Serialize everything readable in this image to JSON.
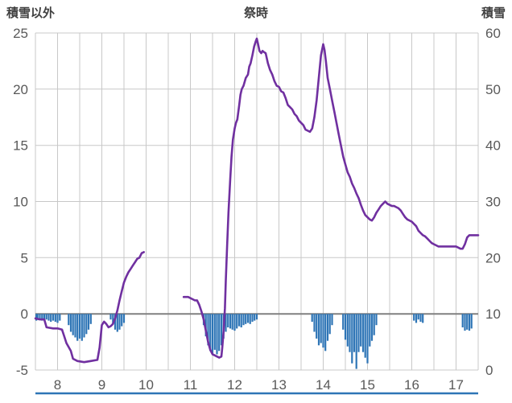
{
  "titles": {
    "left": "積雪以外",
    "center": "祭時",
    "right": "積雪"
  },
  "chart_data": {
    "type": "line+bar",
    "title": "祭時",
    "x_axis": {
      "min": 7.5,
      "max": 17.5,
      "grid_step": 0.5,
      "ticks": [
        8,
        9,
        10,
        11,
        12,
        13,
        14,
        15,
        16,
        17
      ]
    },
    "y_axis_left": {
      "label": "積雪以外",
      "min": -5,
      "max": 25,
      "ticks": [
        -5,
        0,
        5,
        10,
        15,
        20,
        25
      ]
    },
    "y_axis_right": {
      "label": "積雪",
      "min": 0,
      "max": 60,
      "ticks": [
        0,
        10,
        20,
        30,
        40,
        50,
        60
      ]
    },
    "colors": {
      "line": "#7030A0",
      "bar": "#2E75B6",
      "grid": "#C8C8C8",
      "zero_line": "#808080",
      "tick_text": "#595959",
      "title_text": "#404040",
      "bottom_line": "#2E75B6",
      "background": "#FFFFFF"
    },
    "series": [
      {
        "name": "purple-line",
        "type": "line",
        "axis": "left",
        "segments": [
          [
            [
              7.5,
              -0.4
            ],
            [
              7.6,
              -0.5
            ],
            [
              7.7,
              -0.5
            ],
            [
              7.75,
              -1.2
            ],
            [
              7.9,
              -1.3
            ],
            [
              8.0,
              -1.3
            ],
            [
              8.1,
              -1.4
            ],
            [
              8.15,
              -2.0
            ],
            [
              8.2,
              -2.6
            ],
            [
              8.3,
              -3.3
            ],
            [
              8.35,
              -4.0
            ],
            [
              8.45,
              -4.2
            ],
            [
              8.6,
              -4.3
            ],
            [
              8.75,
              -4.2
            ],
            [
              8.9,
              -4.1
            ],
            [
              8.95,
              -3.0
            ],
            [
              9.0,
              -1.0
            ],
            [
              9.05,
              -0.7
            ],
            [
              9.1,
              -0.9
            ],
            [
              9.15,
              -1.2
            ],
            [
              9.2,
              -1.1
            ],
            [
              9.25,
              -0.9
            ],
            [
              9.3,
              -0.4
            ],
            [
              9.35,
              0.3
            ],
            [
              9.4,
              1.2
            ],
            [
              9.45,
              2.0
            ],
            [
              9.5,
              2.8
            ],
            [
              9.55,
              3.3
            ],
            [
              9.6,
              3.7
            ],
            [
              9.65,
              4.0
            ],
            [
              9.7,
              4.3
            ],
            [
              9.75,
              4.6
            ],
            [
              9.8,
              4.9
            ],
            [
              9.85,
              5.0
            ],
            [
              9.9,
              5.4
            ],
            [
              9.95,
              5.5
            ]
          ],
          [
            [
              10.85,
              1.5
            ],
            [
              10.95,
              1.5
            ],
            [
              11.05,
              1.3
            ],
            [
              11.1,
              1.2
            ],
            [
              11.15,
              1.2
            ],
            [
              11.2,
              0.8
            ],
            [
              11.25,
              0.2
            ],
            [
              11.3,
              -0.5
            ],
            [
              11.35,
              -1.5
            ],
            [
              11.4,
              -2.5
            ],
            [
              11.45,
              -3.2
            ],
            [
              11.5,
              -3.6
            ],
            [
              11.55,
              -3.7
            ],
            [
              11.6,
              -3.8
            ],
            [
              11.65,
              -3.9
            ],
            [
              11.7,
              -3.8
            ],
            [
              11.72,
              -3.0
            ],
            [
              11.75,
              -1.5
            ],
            [
              11.78,
              0.5
            ],
            [
              11.8,
              3
            ],
            [
              11.83,
              6
            ],
            [
              11.86,
              9
            ],
            [
              11.9,
              12
            ],
            [
              11.93,
              14
            ],
            [
              11.96,
              15.5
            ],
            [
              12.0,
              16.5
            ],
            [
              12.03,
              17
            ],
            [
              12.06,
              17.3
            ],
            [
              12.1,
              18.5
            ],
            [
              12.13,
              19.5
            ],
            [
              12.16,
              20
            ],
            [
              12.2,
              20.3
            ],
            [
              12.25,
              21
            ],
            [
              12.3,
              21.3
            ],
            [
              12.33,
              22
            ],
            [
              12.36,
              22.3
            ],
            [
              12.4,
              23
            ],
            [
              12.44,
              23.8
            ],
            [
              12.48,
              24.3
            ],
            [
              12.5,
              24.5
            ],
            [
              12.53,
              24
            ],
            [
              12.56,
              23.4
            ],
            [
              12.6,
              23.2
            ],
            [
              12.63,
              23.4
            ],
            [
              12.66,
              23.3
            ],
            [
              12.7,
              23.2
            ],
            [
              12.75,
              22.3
            ],
            [
              12.8,
              21.7
            ],
            [
              12.85,
              21.3
            ],
            [
              12.9,
              20.7
            ],
            [
              12.95,
              20.3
            ],
            [
              13.0,
              20.2
            ],
            [
              13.05,
              19.8
            ],
            [
              13.1,
              19.7
            ],
            [
              13.15,
              19.2
            ],
            [
              13.2,
              18.6
            ],
            [
              13.25,
              18.4
            ],
            [
              13.3,
              18.2
            ],
            [
              13.35,
              17.8
            ],
            [
              13.4,
              17.6
            ],
            [
              13.45,
              17.2
            ],
            [
              13.5,
              17.0
            ],
            [
              13.55,
              16.8
            ],
            [
              13.6,
              16.4
            ],
            [
              13.65,
              16.3
            ],
            [
              13.7,
              16.2
            ],
            [
              13.75,
              16.5
            ],
            [
              13.8,
              17.5
            ],
            [
              13.85,
              19.0
            ],
            [
              13.9,
              21.0
            ],
            [
              13.95,
              23.0
            ],
            [
              14.0,
              24.0
            ],
            [
              14.03,
              23.5
            ],
            [
              14.06,
              22.5
            ],
            [
              14.1,
              21.0
            ],
            [
              14.15,
              20.0
            ],
            [
              14.2,
              19.0
            ],
            [
              14.25,
              18.0
            ],
            [
              14.3,
              17.0
            ],
            [
              14.35,
              16.0
            ],
            [
              14.4,
              15.0
            ],
            [
              14.45,
              14.0
            ],
            [
              14.5,
              13.3
            ],
            [
              14.55,
              12.6
            ],
            [
              14.6,
              12.2
            ],
            [
              14.65,
              11.6
            ],
            [
              14.7,
              11.2
            ],
            [
              14.75,
              10.7
            ],
            [
              14.8,
              10.3
            ],
            [
              14.85,
              9.7
            ],
            [
              14.9,
              9.2
            ],
            [
              14.95,
              8.8
            ],
            [
              15.0,
              8.6
            ],
            [
              15.05,
              8.4
            ],
            [
              15.1,
              8.3
            ],
            [
              15.15,
              8.6
            ],
            [
              15.2,
              9.0
            ],
            [
              15.25,
              9.3
            ],
            [
              15.3,
              9.6
            ],
            [
              15.35,
              9.8
            ],
            [
              15.4,
              10.0
            ],
            [
              15.45,
              9.8
            ],
            [
              15.5,
              9.7
            ],
            [
              15.55,
              9.6
            ],
            [
              15.6,
              9.6
            ],
            [
              15.65,
              9.5
            ],
            [
              15.7,
              9.4
            ],
            [
              15.75,
              9.2
            ],
            [
              15.8,
              8.9
            ],
            [
              15.85,
              8.6
            ],
            [
              15.9,
              8.4
            ],
            [
              15.95,
              8.3
            ],
            [
              16.0,
              8.2
            ],
            [
              16.05,
              8.0
            ],
            [
              16.1,
              7.8
            ],
            [
              16.15,
              7.4
            ],
            [
              16.2,
              7.2
            ],
            [
              16.25,
              7.0
            ],
            [
              16.3,
              6.9
            ],
            [
              16.35,
              6.7
            ],
            [
              16.4,
              6.5
            ],
            [
              16.45,
              6.3
            ],
            [
              16.5,
              6.2
            ],
            [
              16.55,
              6.1
            ],
            [
              16.6,
              6.0
            ],
            [
              16.7,
              6.0
            ],
            [
              16.8,
              6.0
            ],
            [
              16.9,
              6.0
            ],
            [
              17.0,
              6.0
            ],
            [
              17.05,
              5.9
            ],
            [
              17.1,
              5.8
            ],
            [
              17.15,
              5.8
            ],
            [
              17.2,
              6.2
            ],
            [
              17.25,
              6.8
            ],
            [
              17.3,
              7.0
            ],
            [
              17.4,
              7.0
            ],
            [
              17.5,
              7.0
            ]
          ]
        ]
      },
      {
        "name": "blue-bars",
        "type": "bar",
        "axis": "left",
        "points": [
          [
            7.52,
            -0.6
          ],
          [
            7.55,
            -0.5
          ],
          [
            7.6,
            -0.5
          ],
          [
            7.65,
            -0.6
          ],
          [
            7.7,
            -0.6
          ],
          [
            7.75,
            -0.5
          ],
          [
            7.8,
            -0.6
          ],
          [
            7.85,
            -0.7
          ],
          [
            7.9,
            -0.6
          ],
          [
            7.95,
            -0.7
          ],
          [
            8.0,
            -0.8
          ],
          [
            8.05,
            -0.6
          ],
          [
            8.25,
            -1.0
          ],
          [
            8.3,
            -1.6
          ],
          [
            8.35,
            -1.9
          ],
          [
            8.4,
            -2.1
          ],
          [
            8.45,
            -2.4
          ],
          [
            8.5,
            -2.2
          ],
          [
            8.55,
            -2.4
          ],
          [
            8.6,
            -2.1
          ],
          [
            8.65,
            -1.8
          ],
          [
            8.7,
            -1.4
          ],
          [
            8.75,
            -0.9
          ],
          [
            9.2,
            -0.5
          ],
          [
            9.25,
            -0.9
          ],
          [
            9.3,
            -1.4
          ],
          [
            9.35,
            -1.6
          ],
          [
            9.4,
            -1.4
          ],
          [
            9.45,
            -1.1
          ],
          [
            9.5,
            -0.8
          ],
          [
            11.3,
            -1.0
          ],
          [
            11.35,
            -2.0
          ],
          [
            11.4,
            -2.8
          ],
          [
            11.45,
            -3.3
          ],
          [
            11.5,
            -3.6
          ],
          [
            11.55,
            -3.2
          ],
          [
            11.6,
            -3.6
          ],
          [
            11.65,
            -3.3
          ],
          [
            11.7,
            -2.8
          ],
          [
            11.75,
            -2.2
          ],
          [
            11.8,
            -1.6
          ],
          [
            11.85,
            -1.2
          ],
          [
            11.9,
            -1.3
          ],
          [
            11.95,
            -1.4
          ],
          [
            12.0,
            -1.5
          ],
          [
            12.05,
            -1.3
          ],
          [
            12.1,
            -1.1
          ],
          [
            12.15,
            -1.2
          ],
          [
            12.2,
            -1.0
          ],
          [
            12.25,
            -0.9
          ],
          [
            12.3,
            -0.8
          ],
          [
            12.35,
            -0.9
          ],
          [
            12.4,
            -0.7
          ],
          [
            12.45,
            -0.6
          ],
          [
            12.5,
            -0.5
          ],
          [
            13.75,
            -0.7
          ],
          [
            13.8,
            -1.6
          ],
          [
            13.85,
            -2.2
          ],
          [
            13.9,
            -2.8
          ],
          [
            13.95,
            -2.6
          ],
          [
            14.0,
            -3.0
          ],
          [
            14.05,
            -3.3
          ],
          [
            14.1,
            -2.4
          ],
          [
            14.15,
            -1.8
          ],
          [
            14.2,
            -1.0
          ],
          [
            14.45,
            -1.4
          ],
          [
            14.5,
            -2.3
          ],
          [
            14.55,
            -2.9
          ],
          [
            14.6,
            -3.4
          ],
          [
            14.65,
            -4.4
          ],
          [
            14.7,
            -3.4
          ],
          [
            14.75,
            -4.9
          ],
          [
            14.8,
            -3.4
          ],
          [
            14.85,
            -2.9
          ],
          [
            14.9,
            -3.4
          ],
          [
            14.95,
            -3.9
          ],
          [
            15.0,
            -4.4
          ],
          [
            15.05,
            -2.9
          ],
          [
            15.1,
            -2.4
          ],
          [
            15.15,
            -1.9
          ],
          [
            15.2,
            -1.0
          ],
          [
            16.05,
            -0.6
          ],
          [
            16.1,
            -0.8
          ],
          [
            16.15,
            -0.5
          ],
          [
            16.2,
            -0.7
          ],
          [
            16.25,
            -0.8
          ],
          [
            17.15,
            -1.2
          ],
          [
            17.2,
            -1.5
          ],
          [
            17.25,
            -1.4
          ],
          [
            17.3,
            -1.5
          ],
          [
            17.35,
            -1.3
          ]
        ]
      }
    ]
  }
}
